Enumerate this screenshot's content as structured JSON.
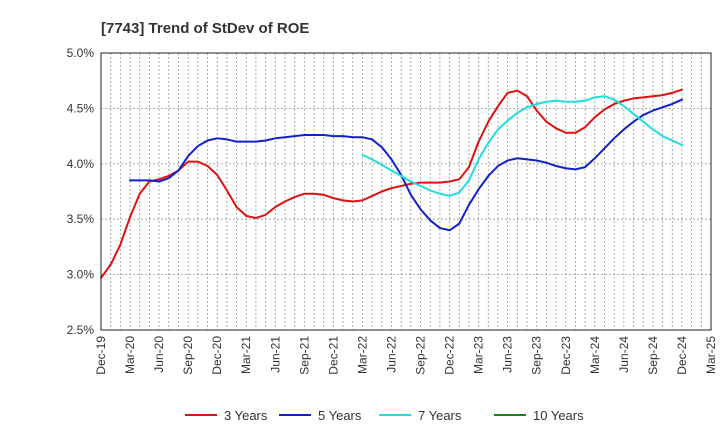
{
  "chart_data": {
    "type": "line",
    "title": "[7743]  Trend of StDev of ROE",
    "xlabel": "",
    "ylabel": "",
    "x_ticks": [
      "Dec-19",
      "Mar-20",
      "Jun-20",
      "Sep-20",
      "Dec-20",
      "Mar-21",
      "Jun-21",
      "Sep-21",
      "Dec-21",
      "Mar-22",
      "Jun-22",
      "Sep-22",
      "Dec-22",
      "Mar-23",
      "Jun-23",
      "Sep-23",
      "Dec-23",
      "Mar-24",
      "Jun-24",
      "Sep-24",
      "Dec-24",
      "Mar-25"
    ],
    "y_ticks": [
      "2.5%",
      "3.0%",
      "3.5%",
      "4.0%",
      "4.5%",
      "5.0%"
    ],
    "ylim": [
      2.5,
      5.0
    ],
    "xlim": [
      0,
      63
    ],
    "grid": true,
    "legend_position": "bottom",
    "series": [
      {
        "name": "3 Years",
        "color": "#dd1111",
        "x": [
          0,
          1,
          2,
          3,
          4,
          5,
          6,
          7,
          8,
          9,
          10,
          11,
          12,
          13,
          14,
          15,
          16,
          17,
          18,
          19,
          20,
          21,
          22,
          23,
          24,
          25,
          26,
          27,
          28,
          29,
          30,
          31,
          32,
          33,
          34,
          35,
          36,
          37,
          38,
          39,
          40,
          41,
          42,
          43,
          44,
          45,
          46,
          47,
          48,
          49,
          50,
          51,
          52,
          53,
          54,
          55,
          56,
          57,
          58,
          59,
          60
        ],
        "values": [
          2.97,
          3.09,
          3.27,
          3.52,
          3.73,
          3.84,
          3.86,
          3.89,
          3.94,
          4.02,
          4.02,
          3.98,
          3.9,
          3.76,
          3.61,
          3.53,
          3.51,
          3.54,
          3.61,
          3.66,
          3.7,
          3.73,
          3.73,
          3.72,
          3.69,
          3.67,
          3.66,
          3.67,
          3.71,
          3.75,
          3.78,
          3.8,
          3.82,
          3.83,
          3.83,
          3.83,
          3.84,
          3.86,
          3.97,
          4.2,
          4.38,
          4.52,
          4.64,
          4.66,
          4.61,
          4.48,
          4.38,
          4.32,
          4.28,
          4.28,
          4.33,
          4.42,
          4.49,
          4.54,
          4.57,
          4.59,
          4.6,
          4.61,
          4.62,
          4.64,
          4.67
        ]
      },
      {
        "name": "5 Years",
        "color": "#1122cc",
        "x": [
          3,
          4,
          5,
          6,
          7,
          8,
          9,
          10,
          11,
          12,
          13,
          14,
          15,
          16,
          17,
          18,
          19,
          20,
          21,
          22,
          23,
          24,
          25,
          26,
          27,
          28,
          29,
          30,
          31,
          32,
          33,
          34,
          35,
          36,
          37,
          38,
          39,
          40,
          41,
          42,
          43,
          44,
          45,
          46,
          47,
          48,
          49,
          50,
          51,
          52,
          53,
          54,
          55,
          56,
          57,
          58,
          59,
          60
        ],
        "values": [
          3.85,
          3.85,
          3.85,
          3.84,
          3.87,
          3.94,
          4.07,
          4.16,
          4.21,
          4.23,
          4.22,
          4.2,
          4.2,
          4.2,
          4.21,
          4.23,
          4.24,
          4.25,
          4.26,
          4.26,
          4.26,
          4.25,
          4.25,
          4.24,
          4.24,
          4.22,
          4.15,
          4.04,
          3.9,
          3.72,
          3.59,
          3.49,
          3.42,
          3.4,
          3.46,
          3.63,
          3.77,
          3.89,
          3.98,
          4.03,
          4.05,
          4.04,
          4.03,
          4.01,
          3.98,
          3.96,
          3.95,
          3.97,
          4.05,
          4.14,
          4.23,
          4.31,
          4.38,
          4.44,
          4.48,
          4.51,
          4.54,
          4.58
        ]
      },
      {
        "name": "7 Years",
        "color": "#22dddd",
        "x": [
          27,
          28,
          29,
          30,
          31,
          32,
          33,
          34,
          35,
          36,
          37,
          38,
          39,
          40,
          41,
          42,
          43,
          44,
          45,
          46,
          47,
          48,
          49,
          50,
          51,
          52,
          53,
          54,
          55,
          56,
          57,
          58,
          59,
          60
        ],
        "values": [
          4.08,
          4.04,
          3.99,
          3.94,
          3.89,
          3.84,
          3.8,
          3.76,
          3.73,
          3.71,
          3.74,
          3.85,
          4.04,
          4.19,
          4.31,
          4.39,
          4.46,
          4.51,
          4.54,
          4.56,
          4.57,
          4.56,
          4.56,
          4.57,
          4.6,
          4.61,
          4.58,
          4.52,
          4.45,
          4.38,
          4.31,
          4.25,
          4.21,
          4.17
        ]
      },
      {
        "name": "10 Years",
        "color": "#118811",
        "x": [],
        "values": []
      }
    ]
  }
}
